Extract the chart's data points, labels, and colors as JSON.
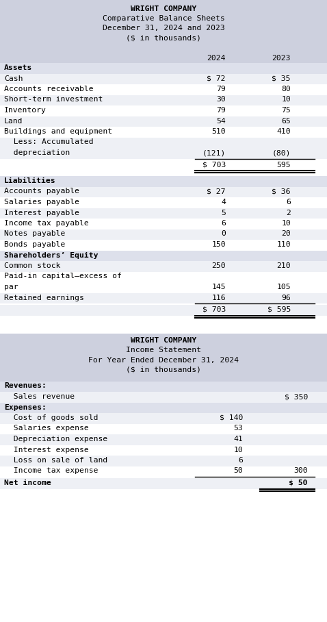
{
  "white": "#ffffff",
  "header_bg": "#cdd0de",
  "row_alt1": "#eef0f5",
  "row_alt2": "#ffffff",
  "row_section": "#dde0eb",
  "text_color": "#000000",
  "bs_title1": "WRIGHT COMPANY",
  "bs_title2": "Comparative Balance Sheets",
  "bs_title3": "December 31, 2024 and 2023",
  "bs_title4": "($ in thousands)",
  "col_2024": "2024",
  "col_2023": "2023",
  "assets_header": "Assets",
  "assets_rows": [
    {
      "label": "Cash",
      "v2024": "$ 72",
      "v2023": "$ 35",
      "indent": false
    },
    {
      "label": "Accounts receivable",
      "v2024": "79",
      "v2023": "80",
      "indent": false
    },
    {
      "label": "Short-term investment",
      "v2024": "30",
      "v2023": "10",
      "indent": false
    },
    {
      "label": "Inventory",
      "v2024": "79",
      "v2023": "75",
      "indent": false
    },
    {
      "label": "Land",
      "v2024": "54",
      "v2023": "65",
      "indent": false
    },
    {
      "label": "Buildings and equipment",
      "v2024": "510",
      "v2023": "410",
      "indent": false
    },
    {
      "label": "  Less: Accumulated",
      "v2024": "",
      "v2023": "",
      "indent": true,
      "twolines": true
    },
    {
      "label": "  depreciation",
      "v2024": "(121)",
      "v2023": "(80)",
      "indent": true,
      "twolines": false
    }
  ],
  "assets_total_2024": "$ 703",
  "assets_total_2023": "595",
  "liab_header": "Liabilities",
  "liab_rows": [
    {
      "label": "Accounts payable",
      "v2024": "$ 27",
      "v2023": "$ 36"
    },
    {
      "label": "Salaries payable",
      "v2024": "4",
      "v2023": "6"
    },
    {
      "label": "Interest payable",
      "v2024": "5",
      "v2023": "2"
    },
    {
      "label": "Income tax payable",
      "v2024": "6",
      "v2023": "10"
    },
    {
      "label": "Notes payable",
      "v2024": "0",
      "v2023": "20"
    },
    {
      "label": "Bonds payable",
      "v2024": "150",
      "v2023": "110"
    }
  ],
  "equity_header": "Shareholders’ Equity",
  "equity_rows": [
    {
      "label": "Common stock",
      "v2024": "250",
      "v2023": "210",
      "twolines": false
    },
    {
      "label": "Paid-in capital–excess of",
      "v2024": "",
      "v2023": "",
      "twolines": true
    },
    {
      "label": "par",
      "v2024": "145",
      "v2023": "105",
      "twolines": false
    },
    {
      "label": "Retained earnings",
      "v2024": "116",
      "v2023": "96",
      "twolines": false
    }
  ],
  "total_2024": "$ 703",
  "total_2023": "$ 595",
  "is_title1": "WRIGHT COMPANY",
  "is_title2": "Income Statement",
  "is_title3": "For Year Ended December 31, 2024",
  "is_title4": "($ in thousands)",
  "rev_header": "Revenues:",
  "rev_rows": [
    {
      "label": "  Sales revenue",
      "v1": "",
      "v2": "$ 350"
    }
  ],
  "exp_header": "Expenses:",
  "exp_rows": [
    {
      "label": "  Cost of goods sold",
      "v1": "$ 140",
      "v2": ""
    },
    {
      "label": "  Salaries expense",
      "v1": "53",
      "v2": ""
    },
    {
      "label": "  Depreciation expense",
      "v1": "41",
      "v2": ""
    },
    {
      "label": "  Interest expense",
      "v1": "10",
      "v2": ""
    },
    {
      "label": "  Loss on sale of land",
      "v1": "6",
      "v2": ""
    },
    {
      "label": "  Income tax expense",
      "v1": "50",
      "v2": "300"
    }
  ],
  "net_income_label": "Net income",
  "net_income_val": "$ 50",
  "fig_w": 4.78,
  "fig_h": 9.08,
  "dpi": 100
}
